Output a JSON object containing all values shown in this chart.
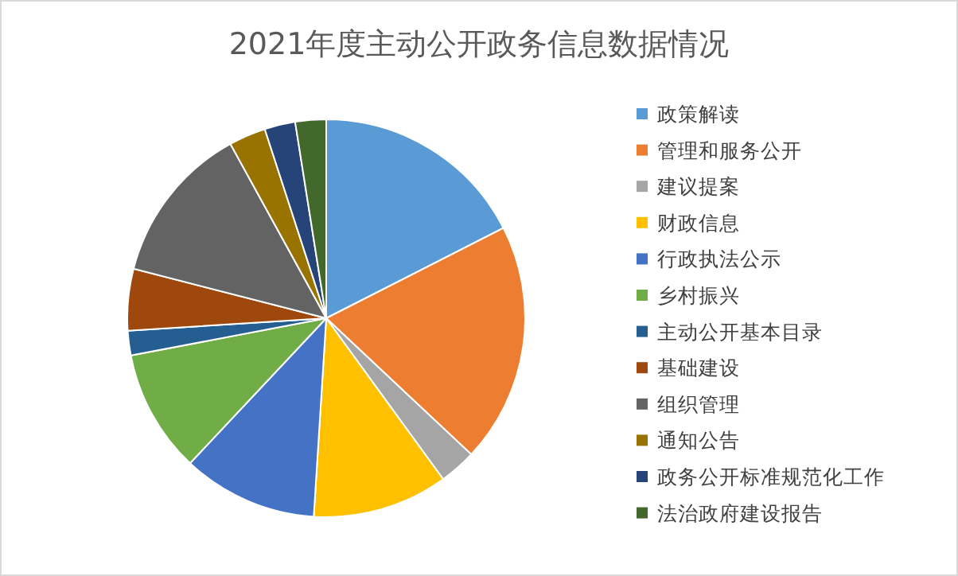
{
  "chart_data": {
    "type": "pie",
    "title": "2021年度主动公开政务信息数据情况",
    "legend": "right",
    "categories": [
      "政策解读",
      "管理和服务公开",
      "建议提案",
      "财政信息",
      "行政执法公示",
      "乡村振兴",
      "主动公开基本目录",
      "基础建设",
      "组织管理",
      "通知公告",
      "政务公开标准规范化工作",
      "法治政府建设报告"
    ],
    "values": [
      17.5,
      19.5,
      3,
      11,
      11,
      10,
      2,
      5,
      13,
      3,
      2.5,
      2.5
    ],
    "colors": [
      "#5b9bd5",
      "#ed7d31",
      "#a5a5a5",
      "#ffc000",
      "#4472c4",
      "#70ad47",
      "#255e91",
      "#9e480e",
      "#636363",
      "#997300",
      "#264478",
      "#43682b"
    ]
  }
}
